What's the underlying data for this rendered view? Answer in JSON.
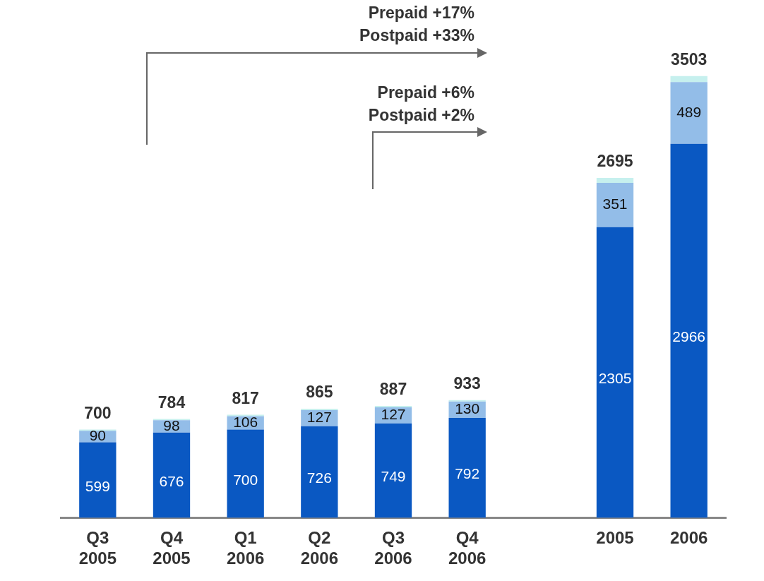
{
  "chart_data": {
    "type": "bar",
    "stacked": true,
    "categories": [
      "Q3 2005",
      "Q4 2005",
      "Q1 2006",
      "Q2 2006",
      "Q3 2006",
      "Q4 2006",
      null,
      "2005",
      "2006"
    ],
    "series": [
      {
        "color": "#0a58c2",
        "values": [
          599,
          676,
          700,
          726,
          749,
          792,
          null,
          2305,
          2966
        ],
        "value_labels": [
          "599",
          "676",
          "700",
          "726",
          "749",
          "792",
          null,
          "2305",
          "2966"
        ]
      },
      {
        "color": "#93bde8",
        "values": [
          90,
          98,
          106,
          127,
          127,
          130,
          null,
          351,
          489
        ],
        "value_labels": [
          "90",
          "98",
          "106",
          "127",
          "127",
          "130",
          null,
          "351",
          "489"
        ]
      },
      {
        "color": "#c6f0ee",
        "values": [
          11,
          10,
          11,
          12,
          11,
          11,
          null,
          39,
          48
        ]
      }
    ],
    "totals": [
      "700",
      "784",
      "817",
      "865",
      "887",
      "933",
      null,
      "2695",
      "3503"
    ],
    "annotations": [
      "Prepaid +17%\nPostpaid +33%",
      "Prepaid +6%\nPostpaid +2%"
    ],
    "grid": false,
    "legend": false,
    "tick_labels": "x"
  }
}
